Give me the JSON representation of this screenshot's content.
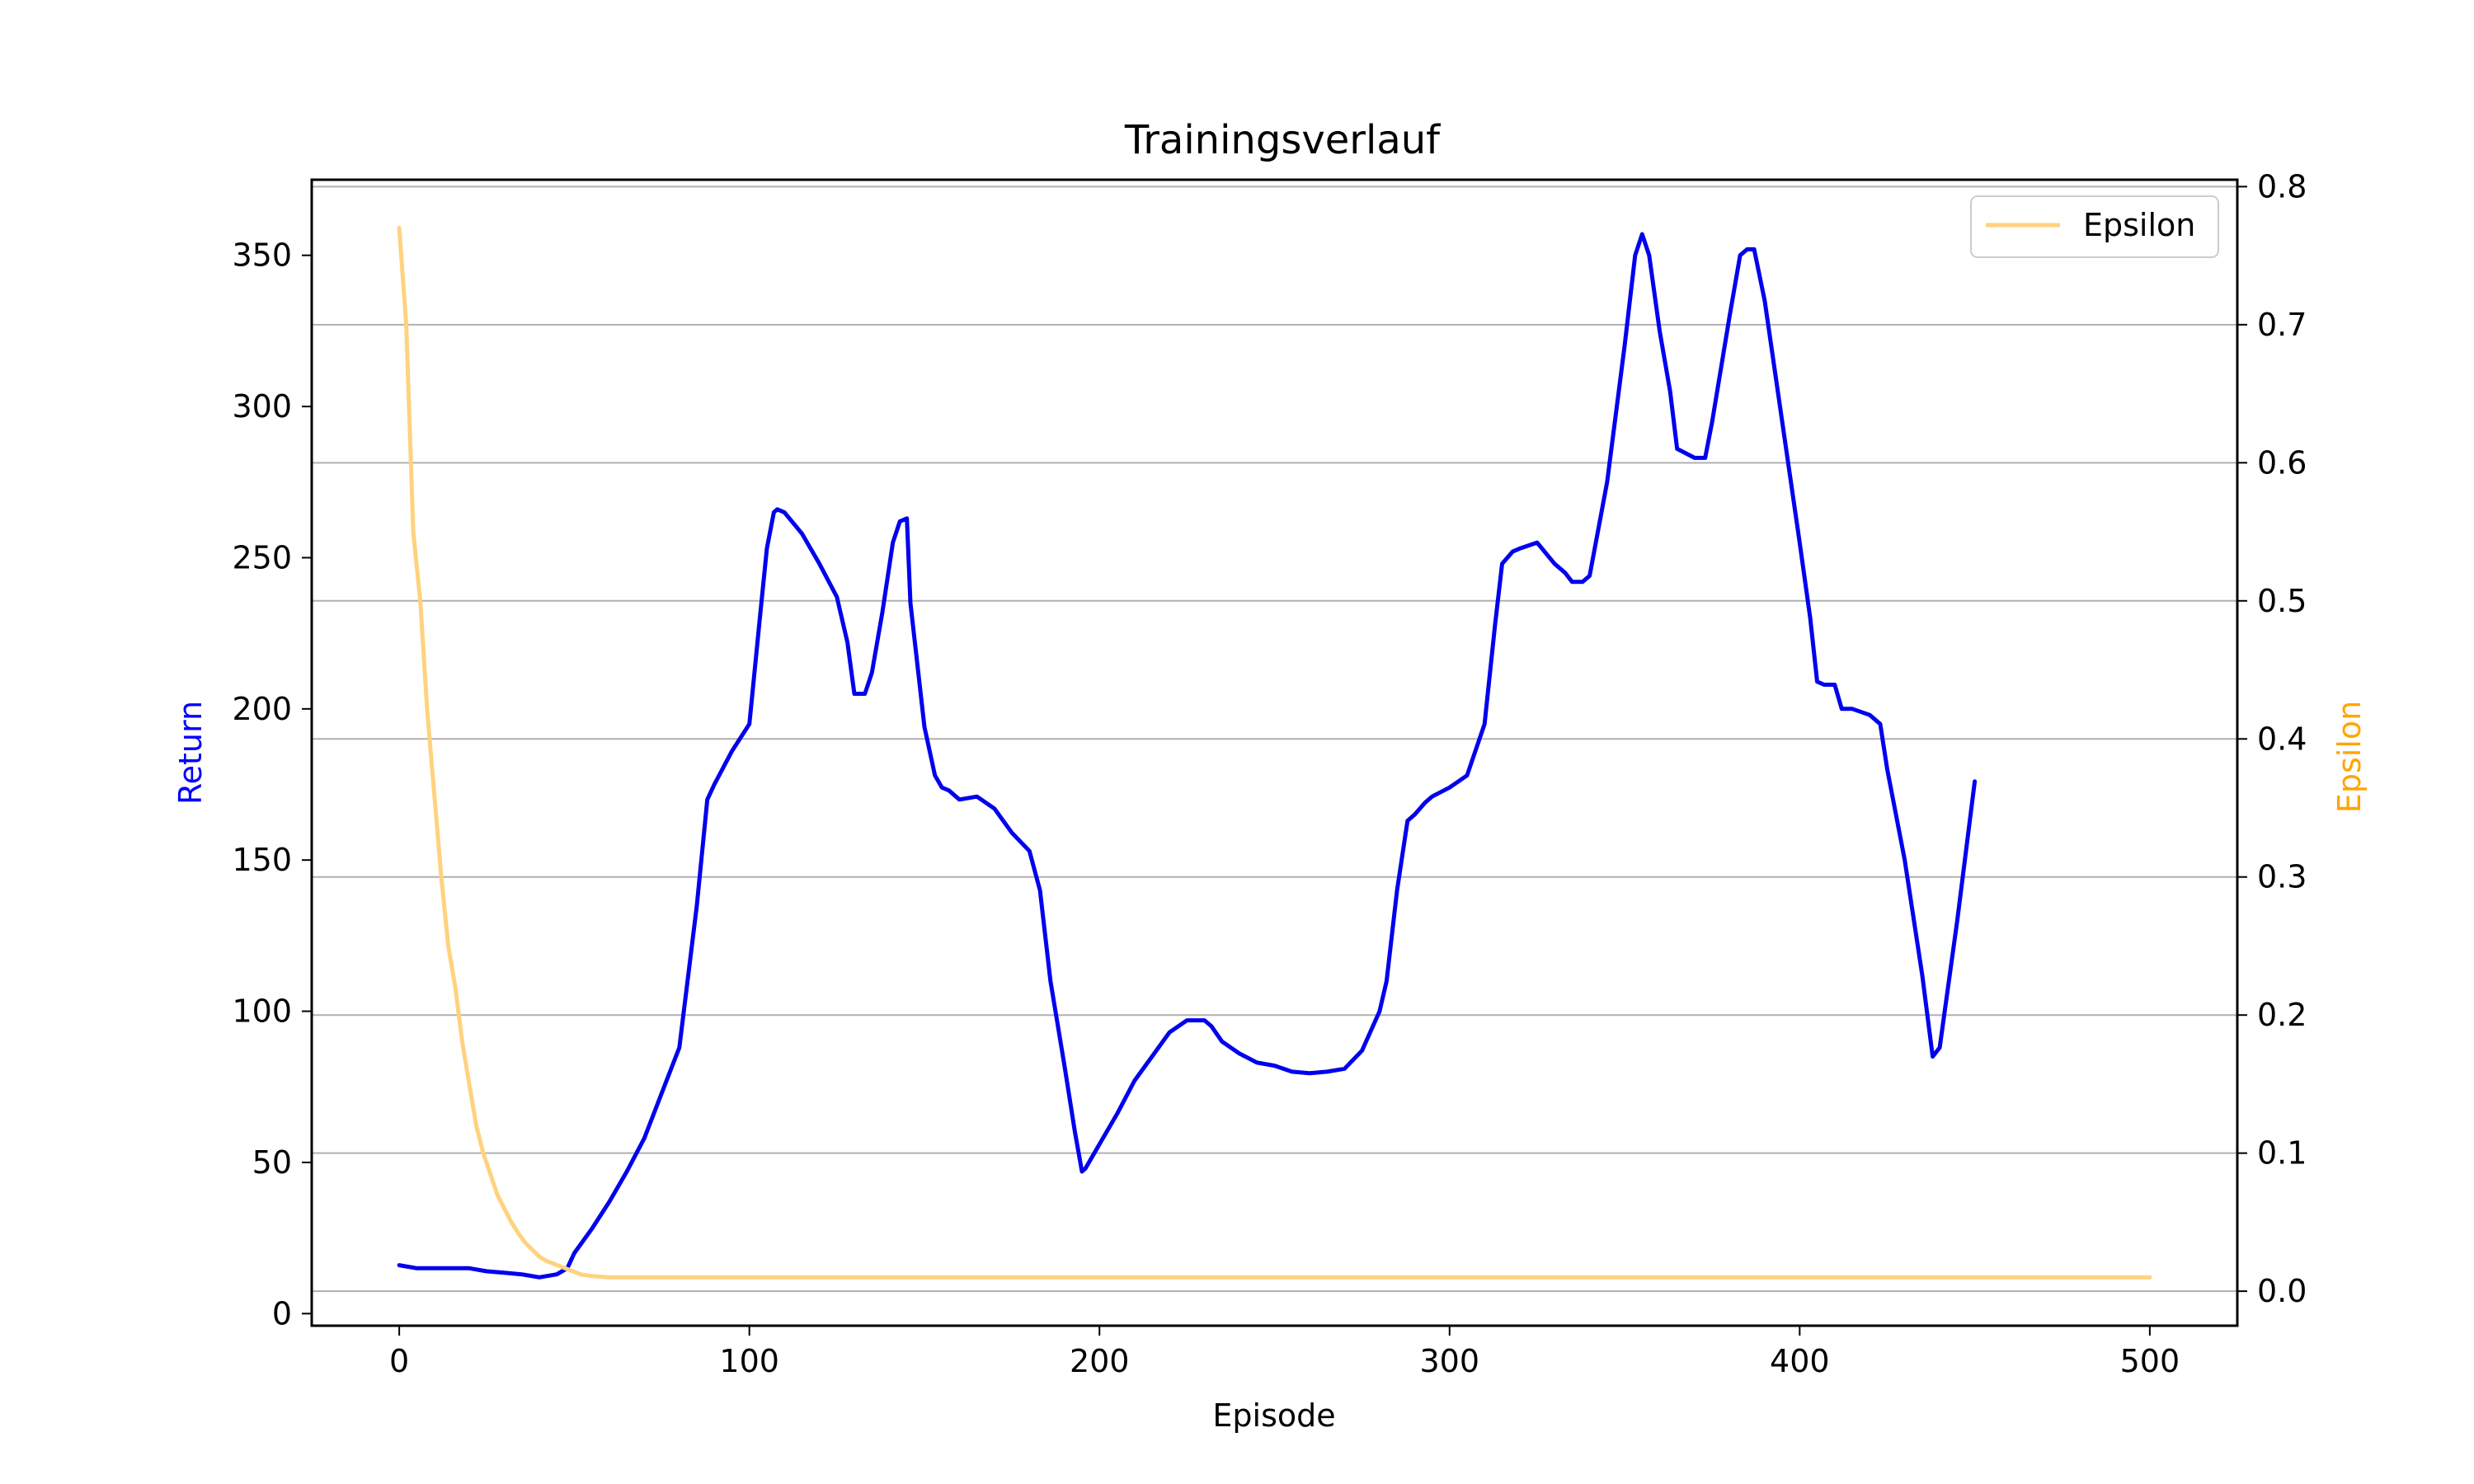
{
  "chart_data": {
    "type": "line",
    "title": "Trainingsverlauf",
    "xlabel": "Episode",
    "ylabel_left": "Return",
    "ylabel_right": "Epsilon",
    "xlim": [
      -25,
      525
    ],
    "ylim_left": [
      -4,
      375
    ],
    "ylim_right": [
      -0.025,
      0.805
    ],
    "xticks": [
      0,
      100,
      200,
      300,
      400,
      500
    ],
    "yticks_left": [
      0,
      50,
      100,
      150,
      200,
      250,
      300,
      350
    ],
    "yticks_right": [
      0.0,
      0.1,
      0.2,
      0.3,
      0.4,
      0.5,
      0.6,
      0.7,
      0.8
    ],
    "grid": "horizontal lines on right axis",
    "legend": {
      "placement": "top-right",
      "entries": [
        "Epsilon"
      ]
    },
    "colors": {
      "return": "#0000ee",
      "epsilon": "#ffd27f",
      "grid": "#b0b0b0",
      "return_label": "#0000ff",
      "epsilon_label": "#ffa500"
    },
    "series": [
      {
        "axis": "left",
        "color": "#0000ee",
        "x": [
          0,
          5,
          10,
          15,
          20,
          25,
          30,
          35,
          40,
          45,
          48,
          50,
          55,
          60,
          65,
          70,
          75,
          80,
          85,
          88,
          90,
          95,
          100,
          103,
          105,
          107,
          108,
          110,
          115,
          120,
          125,
          128,
          130,
          133,
          135,
          138,
          141,
          143,
          145,
          146,
          150,
          153,
          155,
          157,
          160,
          165,
          170,
          175,
          180,
          183,
          186,
          190,
          193,
          195,
          196,
          200,
          205,
          210,
          215,
          220,
          225,
          230,
          232,
          235,
          240,
          245,
          250,
          255,
          260,
          265,
          270,
          275,
          280,
          282,
          285,
          288,
          290,
          293,
          295,
          300,
          305,
          310,
          313,
          315,
          318,
          320,
          325,
          330,
          333,
          335,
          338,
          340,
          345,
          350,
          353,
          355,
          357,
          360,
          363,
          365,
          370,
          373,
          375,
          380,
          383,
          385,
          387,
          390,
          395,
          400,
          403,
          405,
          407,
          410,
          412,
          415,
          420,
          423,
          425,
          430,
          435,
          438,
          440,
          445,
          450
        ],
        "y": [
          16,
          15,
          15,
          15,
          15,
          14,
          13.5,
          13,
          12,
          13,
          15,
          20,
          28,
          37,
          47,
          58,
          73,
          88,
          135,
          170,
          175,
          186,
          195,
          230,
          253,
          265,
          266,
          265,
          258,
          248,
          237,
          222,
          205,
          205,
          212,
          232,
          255,
          262,
          263,
          235,
          194,
          178,
          174,
          173,
          170,
          171,
          167,
          159,
          153,
          140,
          110,
          82,
          60,
          47,
          48,
          56,
          66,
          77,
          85,
          93,
          97,
          97,
          95,
          90,
          86,
          83,
          82,
          80,
          79.5,
          80,
          81,
          87,
          100,
          110,
          140,
          163,
          165,
          169,
          171,
          174,
          178,
          195,
          228,
          248,
          252,
          253,
          255,
          248,
          245,
          242,
          242,
          244,
          275,
          320,
          350,
          357,
          350,
          325,
          305,
          286,
          283,
          283,
          295,
          330,
          350,
          352,
          352,
          335,
          295,
          255,
          230,
          209,
          208,
          208,
          200,
          200,
          198,
          195,
          180,
          150,
          112,
          85,
          88,
          130,
          176
        ]
      },
      {
        "axis": "right",
        "name": "Epsilon",
        "color": "#ffd27f",
        "x": [
          0,
          2,
          4,
          6,
          8,
          10,
          12,
          14,
          16,
          18,
          20,
          22,
          24,
          26,
          28,
          30,
          32,
          34,
          36,
          38,
          40,
          42,
          45,
          48,
          50,
          52,
          55,
          60,
          100,
          200,
          300,
          400,
          500
        ],
        "y": [
          0.77,
          0.7,
          0.55,
          0.5,
          0.42,
          0.36,
          0.3,
          0.25,
          0.22,
          0.18,
          0.15,
          0.12,
          0.1,
          0.085,
          0.07,
          0.06,
          0.05,
          0.042,
          0.035,
          0.03,
          0.025,
          0.022,
          0.019,
          0.016,
          0.014,
          0.012,
          0.011,
          0.01,
          0.01,
          0.01,
          0.01,
          0.01,
          0.01
        ]
      }
    ]
  }
}
